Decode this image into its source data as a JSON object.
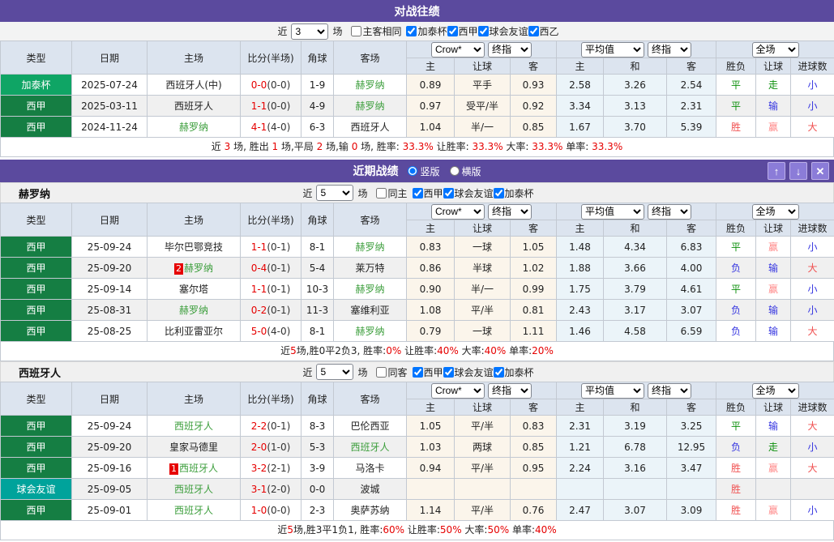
{
  "palette": {
    "header_purple": "#5B4A9E",
    "button_purple": "#8B7CD8",
    "laliga_green": "#157E43",
    "catalonia_green": "#0FA565",
    "friendly_teal": "#00A39B",
    "team_green": "#3C9E3C",
    "score_red": "#E60000",
    "win_red": "#F05050",
    "handicap_win_pink": "#FF8A8A",
    "lose_blue": "#3535E0",
    "draw_green": "#0B8F0B",
    "table_header_bg": "#DCE4EF",
    "odds_col_bg": "#FBF5EB",
    "avg_col_bg": "#EBF4F9"
  },
  "table_headers": {
    "left": [
      "类型",
      "日期",
      "主场",
      "比分(半场)",
      "角球",
      "客场"
    ],
    "selects": [
      "Crow*",
      "终指",
      "平均值",
      "终指",
      "全场"
    ],
    "subs": [
      "主",
      "让球",
      "客",
      "主",
      "和",
      "客",
      "胜负",
      "让球",
      "进球数"
    ]
  },
  "h2h": {
    "title": "对战往绩",
    "filter": {
      "prefix": "近",
      "games": "3",
      "suffix": "场",
      "checkboxes": [
        {
          "label": "主客相同",
          "checked": false
        },
        {
          "label": "加泰杯",
          "checked": true
        },
        {
          "label": "西甲",
          "checked": true
        },
        {
          "label": "球会友谊",
          "checked": true
        },
        {
          "label": "西乙",
          "checked": true
        }
      ]
    },
    "rows": [
      {
        "type": "加泰杯",
        "type_style": "catalonia",
        "date": "2025-07-24",
        "home": {
          "text": "西班牙人(中)",
          "green": false,
          "badge": ""
        },
        "score": "0-0",
        "half": "(0-0)",
        "corner": "1-9",
        "away": {
          "text": "赫罗纳",
          "green": true
        },
        "odds": [
          "0.89",
          "平手",
          "0.93"
        ],
        "avg": [
          "2.58",
          "3.26",
          "2.54"
        ],
        "outcome": [
          {
            "text": "平",
            "style": "green"
          },
          {
            "text": "走",
            "style": "green"
          },
          {
            "text": "小",
            "style": "blue"
          }
        ]
      },
      {
        "type": "西甲",
        "type_style": "laliga",
        "date": "2025-03-11",
        "home": {
          "text": "西班牙人",
          "green": false,
          "badge": ""
        },
        "score": "1-1",
        "half": "(0-0)",
        "corner": "4-9",
        "away": {
          "text": "赫罗纳",
          "green": true
        },
        "odds": [
          "0.97",
          "受平/半",
          "0.92"
        ],
        "avg": [
          "3.34",
          "3.13",
          "2.31"
        ],
        "outcome": [
          {
            "text": "平",
            "style": "green"
          },
          {
            "text": "输",
            "style": "blue"
          },
          {
            "text": "小",
            "style": "blue"
          }
        ]
      },
      {
        "type": "西甲",
        "type_style": "laliga",
        "date": "2024-11-24",
        "home": {
          "text": "赫罗纳",
          "green": true,
          "badge": ""
        },
        "score": "4-1",
        "half": "(4-0)",
        "corner": "6-3",
        "away": {
          "text": "西班牙人",
          "green": false
        },
        "odds": [
          "1.04",
          "半/一",
          "0.85"
        ],
        "avg": [
          "1.67",
          "3.70",
          "5.39"
        ],
        "outcome": [
          {
            "text": "胜",
            "style": "red"
          },
          {
            "text": "赢",
            "style": "pink"
          },
          {
            "text": "大",
            "style": "red"
          }
        ]
      }
    ],
    "summary": [
      {
        "text": "近 ",
        "style": "dark"
      },
      {
        "text": "3",
        "style": "red"
      },
      {
        "text": " 场, 胜出 ",
        "style": "dark"
      },
      {
        "text": "1",
        "style": "red"
      },
      {
        "text": " 场,平局 ",
        "style": "dark"
      },
      {
        "text": "2",
        "style": "red"
      },
      {
        "text": " 场,输 ",
        "style": "dark"
      },
      {
        "text": "0",
        "style": "red"
      },
      {
        "text": " 场, 胜率: ",
        "style": "dark"
      },
      {
        "text": "33.3%",
        "style": "red"
      },
      {
        "text": " 让胜率: ",
        "style": "dark"
      },
      {
        "text": "33.3%",
        "style": "red"
      },
      {
        "text": " 大率: ",
        "style": "dark"
      },
      {
        "text": "33.3%",
        "style": "red"
      },
      {
        "text": " 单率: ",
        "style": "dark"
      },
      {
        "text": "33.3%",
        "style": "red"
      }
    ]
  },
  "recent": {
    "title": "近期战绩",
    "radios": [
      {
        "label": "竖版",
        "checked": true
      },
      {
        "label": "横版",
        "checked": false
      }
    ],
    "buttons": {
      "up": "↑",
      "down": "↓",
      "close": "✕"
    },
    "teams": [
      {
        "name": "赫罗纳",
        "filter": {
          "prefix": "近",
          "games": "5",
          "suffix": "场",
          "checkboxes": [
            {
              "label": "同主",
              "checked": false
            },
            {
              "label": "西甲",
              "checked": true
            },
            {
              "label": "球会友谊",
              "checked": true
            },
            {
              "label": "加泰杯",
              "checked": true
            }
          ]
        },
        "rows": [
          {
            "type": "西甲",
            "type_style": "laliga",
            "date": "25-09-24",
            "home": {
              "text": "毕尔巴鄂竞技",
              "green": false,
              "badge": ""
            },
            "score": "1-1",
            "half": "(0-1)",
            "corner": "8-1",
            "away": {
              "text": "赫罗纳",
              "green": true
            },
            "odds": [
              "0.83",
              "一球",
              "1.05"
            ],
            "avg": [
              "1.48",
              "4.34",
              "6.83"
            ],
            "outcome": [
              {
                "text": "平",
                "style": "green"
              },
              {
                "text": "赢",
                "style": "pink"
              },
              {
                "text": "小",
                "style": "blue"
              }
            ]
          },
          {
            "type": "西甲",
            "type_style": "laliga",
            "date": "25-09-20",
            "home": {
              "text": "赫罗纳",
              "green": true,
              "badge": "2"
            },
            "score": "0-4",
            "half": "(0-1)",
            "corner": "5-4",
            "away": {
              "text": "莱万特",
              "green": false
            },
            "odds": [
              "0.86",
              "半球",
              "1.02"
            ],
            "avg": [
              "1.88",
              "3.66",
              "4.00"
            ],
            "outcome": [
              {
                "text": "负",
                "style": "blue"
              },
              {
                "text": "输",
                "style": "blue"
              },
              {
                "text": "大",
                "style": "red"
              }
            ]
          },
          {
            "type": "西甲",
            "type_style": "laliga",
            "date": "25-09-14",
            "home": {
              "text": "塞尔塔",
              "green": false,
              "badge": ""
            },
            "score": "1-1",
            "half": "(0-1)",
            "corner": "10-3",
            "away": {
              "text": "赫罗纳",
              "green": true
            },
            "odds": [
              "0.90",
              "半/一",
              "0.99"
            ],
            "avg": [
              "1.75",
              "3.79",
              "4.61"
            ],
            "outcome": [
              {
                "text": "平",
                "style": "green"
              },
              {
                "text": "赢",
                "style": "pink"
              },
              {
                "text": "小",
                "style": "blue"
              }
            ]
          },
          {
            "type": "西甲",
            "type_style": "laliga",
            "date": "25-08-31",
            "home": {
              "text": "赫罗纳",
              "green": true,
              "badge": ""
            },
            "score": "0-2",
            "half": "(0-1)",
            "corner": "11-3",
            "away": {
              "text": "塞维利亚",
              "green": false
            },
            "odds": [
              "1.08",
              "平/半",
              "0.81"
            ],
            "avg": [
              "2.43",
              "3.17",
              "3.07"
            ],
            "outcome": [
              {
                "text": "负",
                "style": "blue"
              },
              {
                "text": "输",
                "style": "blue"
              },
              {
                "text": "小",
                "style": "blue"
              }
            ]
          },
          {
            "type": "西甲",
            "type_style": "laliga",
            "date": "25-08-25",
            "home": {
              "text": "比利亚雷亚尔",
              "green": false,
              "badge": ""
            },
            "score": "5-0",
            "half": "(4-0)",
            "corner": "8-1",
            "away": {
              "text": "赫罗纳",
              "green": true
            },
            "odds": [
              "0.79",
              "一球",
              "1.11"
            ],
            "avg": [
              "1.46",
              "4.58",
              "6.59"
            ],
            "outcome": [
              {
                "text": "负",
                "style": "blue"
              },
              {
                "text": "输",
                "style": "blue"
              },
              {
                "text": "大",
                "style": "red"
              }
            ]
          }
        ],
        "summary": [
          {
            "text": "近",
            "style": "dark"
          },
          {
            "text": "5",
            "style": "red"
          },
          {
            "text": "场,胜0平2负3, 胜率:",
            "style": "dark"
          },
          {
            "text": "0%",
            "style": "red"
          },
          {
            "text": " 让胜率:",
            "style": "dark"
          },
          {
            "text": "40%",
            "style": "red"
          },
          {
            "text": " 大率:",
            "style": "dark"
          },
          {
            "text": "40%",
            "style": "red"
          },
          {
            "text": " 单率:",
            "style": "dark"
          },
          {
            "text": "20%",
            "style": "red"
          }
        ]
      },
      {
        "name": "西班牙人",
        "filter": {
          "prefix": "近",
          "games": "5",
          "suffix": "场",
          "checkboxes": [
            {
              "label": "同客",
              "checked": false
            },
            {
              "label": "西甲",
              "checked": true
            },
            {
              "label": "球会友谊",
              "checked": true
            },
            {
              "label": "加泰杯",
              "checked": true
            }
          ]
        },
        "rows": [
          {
            "type": "西甲",
            "type_style": "laliga",
            "date": "25-09-24",
            "home": {
              "text": "西班牙人",
              "green": true,
              "badge": ""
            },
            "score": "2-2",
            "half": "(0-1)",
            "corner": "8-3",
            "away": {
              "text": "巴伦西亚",
              "green": false
            },
            "odds": [
              "1.05",
              "平/半",
              "0.83"
            ],
            "avg": [
              "2.31",
              "3.19",
              "3.25"
            ],
            "outcome": [
              {
                "text": "平",
                "style": "green"
              },
              {
                "text": "输",
                "style": "blue"
              },
              {
                "text": "大",
                "style": "red"
              }
            ]
          },
          {
            "type": "西甲",
            "type_style": "laliga",
            "date": "25-09-20",
            "home": {
              "text": "皇家马德里",
              "green": false,
              "badge": ""
            },
            "score": "2-0",
            "half": "(1-0)",
            "corner": "5-3",
            "away": {
              "text": "西班牙人",
              "green": true
            },
            "odds": [
              "1.03",
              "两球",
              "0.85"
            ],
            "avg": [
              "1.21",
              "6.78",
              "12.95"
            ],
            "outcome": [
              {
                "text": "负",
                "style": "blue"
              },
              {
                "text": "走",
                "style": "green"
              },
              {
                "text": "小",
                "style": "blue"
              }
            ]
          },
          {
            "type": "西甲",
            "type_style": "laliga",
            "date": "25-09-16",
            "home": {
              "text": "西班牙人",
              "green": true,
              "badge": "1"
            },
            "score": "3-2",
            "half": "(2-1)",
            "corner": "3-9",
            "away": {
              "text": "马洛卡",
              "green": false
            },
            "odds": [
              "0.94",
              "平/半",
              "0.95"
            ],
            "avg": [
              "2.24",
              "3.16",
              "3.47"
            ],
            "outcome": [
              {
                "text": "胜",
                "style": "red"
              },
              {
                "text": "赢",
                "style": "pink"
              },
              {
                "text": "大",
                "style": "red"
              }
            ]
          },
          {
            "type": "球会友谊",
            "type_style": "friendly",
            "date": "25-09-05",
            "home": {
              "text": "西班牙人",
              "green": true,
              "badge": ""
            },
            "score": "3-1",
            "half": "(2-0)",
            "corner": "0-0",
            "away": {
              "text": "波城",
              "green": false
            },
            "odds": [
              "",
              "",
              ""
            ],
            "avg": [
              "",
              "",
              ""
            ],
            "outcome": [
              {
                "text": "胜",
                "style": "red"
              },
              {
                "text": "",
                "style": "blue"
              },
              {
                "text": "",
                "style": "blue"
              }
            ]
          },
          {
            "type": "西甲",
            "type_style": "laliga",
            "date": "25-09-01",
            "home": {
              "text": "西班牙人",
              "green": true,
              "badge": ""
            },
            "score": "1-0",
            "half": "(0-0)",
            "corner": "2-3",
            "away": {
              "text": "奥萨苏纳",
              "green": false
            },
            "odds": [
              "1.14",
              "平/半",
              "0.76"
            ],
            "avg": [
              "2.47",
              "3.07",
              "3.09"
            ],
            "outcome": [
              {
                "text": "胜",
                "style": "red"
              },
              {
                "text": "赢",
                "style": "pink"
              },
              {
                "text": "小",
                "style": "blue"
              }
            ]
          }
        ],
        "summary": [
          {
            "text": "近",
            "style": "dark"
          },
          {
            "text": "5",
            "style": "red"
          },
          {
            "text": "场,胜3平1负1, 胜率:",
            "style": "dark"
          },
          {
            "text": "60%",
            "style": "red"
          },
          {
            "text": " 让胜率:",
            "style": "dark"
          },
          {
            "text": "50%",
            "style": "red"
          },
          {
            "text": " 大率:",
            "style": "dark"
          },
          {
            "text": "50%",
            "style": "red"
          },
          {
            "text": " 单率:",
            "style": "dark"
          },
          {
            "text": "40%",
            "style": "red"
          }
        ]
      }
    ]
  }
}
